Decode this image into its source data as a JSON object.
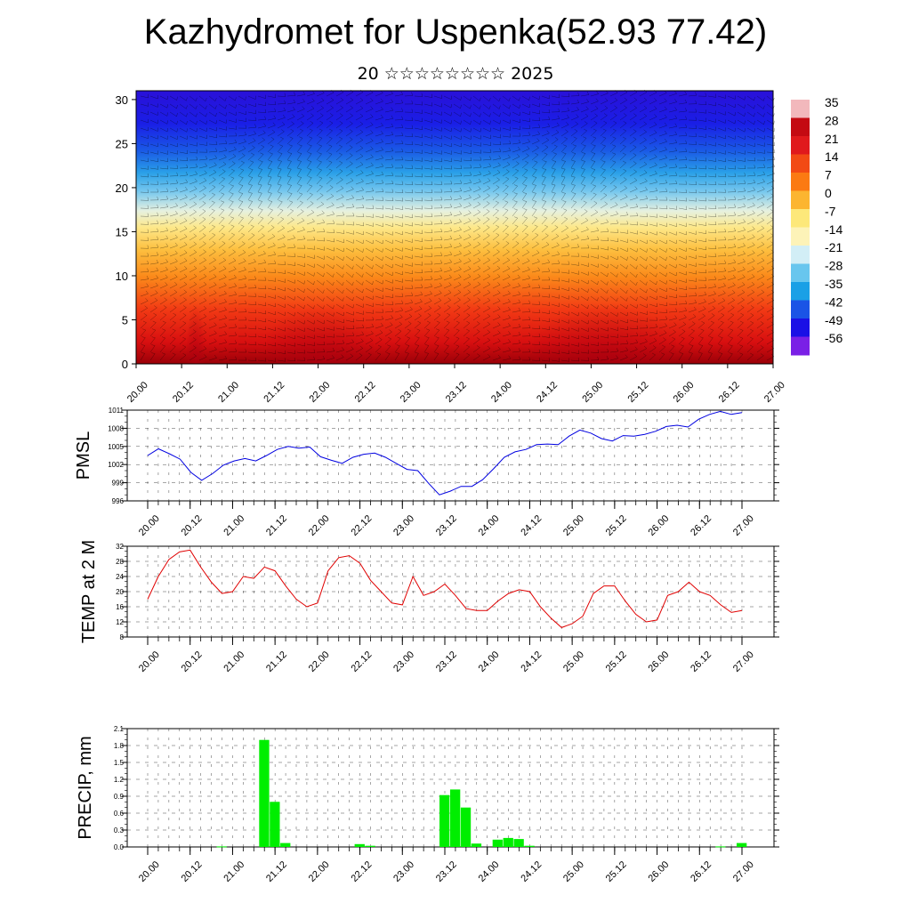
{
  "header": {
    "title": "Kazhydromet for Uspenka(52.93 77.42)",
    "subtitle": "20 ☆☆☆☆☆☆☆☆ 2025"
  },
  "time_labels": [
    "20.00",
    "20.12",
    "21.00",
    "21.12",
    "22.00",
    "22.12",
    "23.00",
    "23.12",
    "24.00",
    "24.12",
    "25.00",
    "25.12",
    "26.00",
    "26.12",
    "27.00"
  ],
  "chart_data": [
    {
      "type": "heatmap",
      "name": "cross-section",
      "x_ticks": [
        "20.00",
        "20.12",
        "21.00",
        "21.12",
        "22.00",
        "22.12",
        "23.00",
        "23.12",
        "24.00",
        "24.12",
        "25.00",
        "25.12",
        "26.00",
        "26.12",
        "27.00"
      ],
      "y_ticks": [
        0,
        5,
        10,
        15,
        20,
        25,
        30
      ],
      "ylim": [
        0,
        31
      ],
      "colorbar_ticks": [
        35,
        28,
        21,
        14,
        7,
        0,
        -7,
        -14,
        -21,
        -28,
        -35,
        -42,
        -49,
        -56
      ],
      "colorbar_colors": [
        "#f2b8bc",
        "#c40a12",
        "#e0191c",
        "#f24a14",
        "#fb7a12",
        "#fcb530",
        "#fde87a",
        "#fdf3b8",
        "#d2eef6",
        "#68c6ee",
        "#1aa0e6",
        "#1a54e6",
        "#1a10e6",
        "#7a20e6"
      ]
    },
    {
      "type": "line",
      "ylabel": "PMSL",
      "ylim": [
        996,
        1011
      ],
      "y_ticks": [
        996,
        999,
        1002,
        1005,
        1008,
        1011
      ],
      "color": "#0000e0",
      "values": [
        1003.5,
        1004.6,
        1003.8,
        1002.9,
        1000.7,
        999.4,
        1000.5,
        1001.9,
        1002.6,
        1003.0,
        1002.6,
        1003.5,
        1004.5,
        1005.0,
        1004.7,
        1004.9,
        1003.3,
        1002.7,
        1002.2,
        1003.2,
        1003.7,
        1003.9,
        1003.2,
        1002.2,
        1001.2,
        1001.0,
        998.9,
        997.0,
        997.6,
        998.4,
        998.4,
        999.5,
        1001.3,
        1003.2,
        1004.1,
        1004.5,
        1005.3,
        1005.4,
        1005.3,
        1006.7,
        1007.7,
        1007.2,
        1006.3,
        1005.9,
        1006.8,
        1006.7,
        1007.0,
        1007.5,
        1008.3,
        1008.5,
        1008.2,
        1009.5,
        1010.3,
        1010.8,
        1010.3,
        1010.6
      ]
    },
    {
      "type": "line",
      "ylabel": "TEMP at 2 M",
      "ylim": [
        8,
        32
      ],
      "y_ticks": [
        8,
        12,
        16,
        20,
        24,
        28,
        32
      ],
      "color": "#e00000",
      "values": [
        18.0,
        24.0,
        28.5,
        30.5,
        31.0,
        26.5,
        22.5,
        19.5,
        20.0,
        24.0,
        23.5,
        26.5,
        25.5,
        21.5,
        18.0,
        16.0,
        17.0,
        25.5,
        29.0,
        29.5,
        27.5,
        23.0,
        20.0,
        17.0,
        16.5,
        24.0,
        19.0,
        20.0,
        22.0,
        19.0,
        15.5,
        15.0,
        15.0,
        17.5,
        19.5,
        20.5,
        20.0,
        16.0,
        13.0,
        10.5,
        11.5,
        13.5,
        19.5,
        21.5,
        21.5,
        17.5,
        14.0,
        12.0,
        12.5,
        19.0,
        20.0,
        22.5,
        20.0,
        19.0,
        16.5,
        14.5,
        15.0
      ]
    },
    {
      "type": "bar",
      "ylabel": "PRECIP, mm",
      "ylim": [
        0,
        2.1
      ],
      "y_ticks": [
        "0.0",
        "0.3",
        "0.6",
        "0.9",
        "1.2",
        "1.5",
        "1.8",
        "2.1"
      ],
      "color": "#00ee00",
      "values": [
        0,
        0,
        0,
        0,
        0,
        0,
        0.01,
        0,
        0,
        0,
        1.9,
        0.8,
        0.07,
        0,
        0,
        0,
        0,
        0,
        0,
        0.05,
        0.02,
        0,
        0,
        0,
        0,
        0,
        0,
        0.92,
        1.02,
        0.7,
        0.06,
        0,
        0.13,
        0.16,
        0.14,
        0.02,
        0,
        0,
        0,
        0,
        0,
        0,
        0,
        0,
        0,
        0,
        0,
        0,
        0,
        0,
        0,
        0,
        0,
        0.01,
        0,
        0.07,
        0
      ]
    }
  ]
}
